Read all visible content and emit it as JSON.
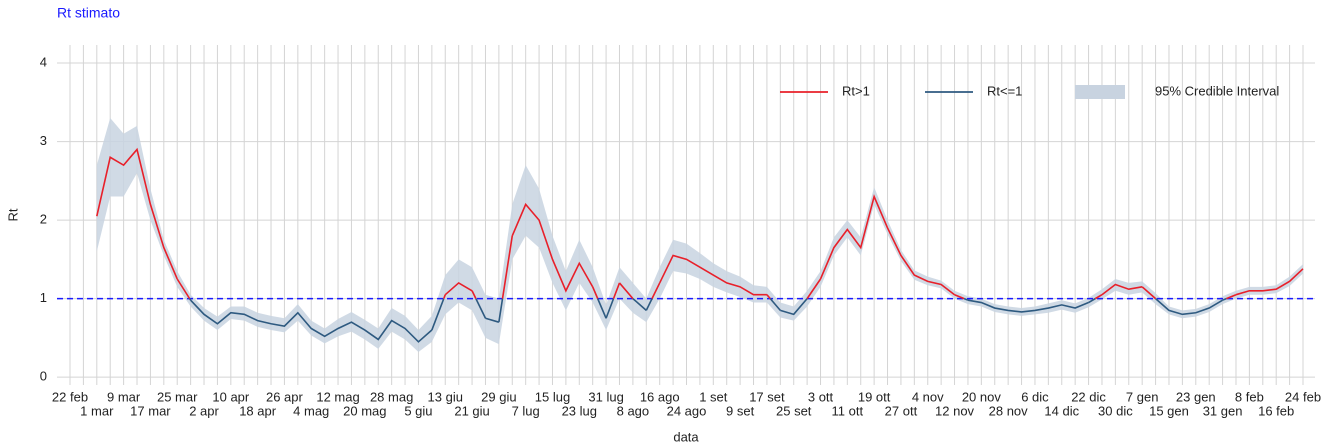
{
  "chart_data": {
    "type": "line",
    "title": "Rt stimato",
    "x_label": "data",
    "y_label": "Rt",
    "categories": [
      "22 feb",
      null,
      "1 mar",
      null,
      "9 mar",
      null,
      "17 mar",
      null,
      "25 mar",
      null,
      "2 apr",
      null,
      "10 apr",
      null,
      "18 apr",
      null,
      "26 apr",
      null,
      "4 mag",
      null,
      "12 mag",
      null,
      "20 mag",
      null,
      "28 mag",
      null,
      "5 giu",
      null,
      "13 giu",
      null,
      "21 giu",
      null,
      "29 giu",
      null,
      "7 lug",
      null,
      "15 lug",
      null,
      "23 lug",
      null,
      "31 lug",
      null,
      "8 ago",
      null,
      "16 ago",
      null,
      "24 ago",
      null,
      "1 set",
      null,
      "9 set",
      null,
      "17 set",
      null,
      "25 set",
      null,
      "3 ott",
      null,
      "11 ott",
      null,
      "19 ott",
      null,
      "27 ott",
      null,
      "4 nov",
      null,
      "12 nov",
      null,
      "20 nov",
      null,
      "28 nov",
      null,
      "6 dic",
      null,
      "14 dic",
      null,
      "22 dic",
      null,
      "30 dic",
      null,
      "7 gen",
      null,
      "15 gen",
      null,
      "23 gen",
      null,
      "31 gen",
      null,
      "8 feb",
      null,
      "16 feb",
      null,
      "24 feb"
    ],
    "series": [
      {
        "name": "Rt>1",
        "color": "#e8202a",
        "values": [
          null,
          null,
          2.05,
          2.8,
          2.7,
          2.9,
          2.2,
          1.65,
          1.25,
          null,
          null,
          null,
          null,
          null,
          null,
          null,
          null,
          null,
          null,
          null,
          null,
          null,
          null,
          null,
          null,
          null,
          null,
          null,
          1.05,
          1.2,
          1.1,
          null,
          null,
          1.8,
          2.2,
          2.0,
          1.5,
          1.1,
          1.45,
          1.15,
          null,
          1.2,
          null,
          null,
          1.2,
          1.55,
          1.5,
          1.4,
          1.3,
          1.2,
          1.15,
          1.05,
          1.05,
          null,
          null,
          null,
          1.25,
          1.65,
          1.88,
          1.65,
          2.3,
          1.9,
          1.55,
          1.3,
          1.22,
          1.18,
          1.05,
          null,
          null,
          null,
          null,
          null,
          null,
          null,
          null,
          null,
          null,
          1.05,
          1.18,
          1.12,
          1.15,
          null,
          null,
          null,
          null,
          null,
          null,
          1.05,
          1.1,
          1.1,
          1.12,
          1.22,
          1.38
        ]
      },
      {
        "name": "Rt<=1",
        "color": "#2e5a80",
        "values": [
          null,
          null,
          null,
          null,
          null,
          null,
          null,
          null,
          null,
          0.98,
          0.8,
          0.68,
          0.82,
          0.8,
          0.72,
          0.68,
          0.65,
          0.82,
          0.62,
          0.52,
          0.62,
          0.7,
          0.6,
          0.48,
          0.72,
          0.62,
          0.45,
          0.6,
          null,
          null,
          null,
          0.75,
          0.7,
          null,
          null,
          null,
          null,
          null,
          null,
          null,
          0.75,
          null,
          1.0,
          0.85,
          null,
          null,
          null,
          null,
          null,
          null,
          null,
          null,
          null,
          0.85,
          0.8,
          1.0,
          null,
          null,
          null,
          null,
          null,
          null,
          null,
          null,
          null,
          null,
          null,
          0.98,
          0.95,
          0.88,
          0.85,
          0.83,
          0.85,
          0.88,
          0.92,
          0.88,
          0.95,
          null,
          null,
          null,
          null,
          1.0,
          0.85,
          0.8,
          0.82,
          0.88,
          0.98,
          null,
          null,
          null,
          null,
          null,
          null
        ]
      }
    ],
    "interval": {
      "name": "95% Credible Interval",
      "color": "#c8d3e0",
      "lower": [
        null,
        null,
        1.6,
        2.3,
        2.3,
        2.6,
        2.0,
        1.55,
        1.15,
        0.9,
        0.72,
        0.6,
        0.74,
        0.72,
        0.64,
        0.6,
        0.57,
        0.72,
        0.53,
        0.43,
        0.52,
        0.58,
        0.48,
        0.36,
        0.58,
        0.48,
        0.32,
        0.45,
        0.8,
        0.95,
        0.85,
        0.5,
        0.42,
        1.5,
        1.8,
        1.65,
        1.2,
        0.85,
        1.2,
        0.95,
        0.6,
        1.0,
        0.82,
        0.7,
        1.0,
        1.35,
        1.32,
        1.25,
        1.15,
        1.08,
        1.02,
        0.95,
        0.95,
        0.76,
        0.72,
        0.9,
        1.15,
        1.55,
        1.78,
        1.55,
        2.2,
        1.82,
        1.48,
        1.24,
        1.17,
        1.13,
        1.0,
        0.93,
        0.9,
        0.83,
        0.8,
        0.78,
        0.8,
        0.82,
        0.86,
        0.82,
        0.89,
        0.99,
        1.1,
        1.05,
        1.08,
        0.93,
        0.8,
        0.75,
        0.77,
        0.83,
        0.93,
        1.0,
        1.05,
        1.05,
        1.07,
        1.16,
        1.32
      ],
      "upper": [
        null,
        null,
        2.7,
        3.3,
        3.1,
        3.2,
        2.4,
        1.75,
        1.35,
        1.05,
        0.88,
        0.77,
        0.9,
        0.9,
        0.82,
        0.78,
        0.75,
        0.93,
        0.72,
        0.62,
        0.74,
        0.83,
        0.73,
        0.62,
        0.88,
        0.78,
        0.6,
        0.78,
        1.3,
        1.5,
        1.4,
        1.05,
        1.0,
        2.2,
        2.7,
        2.4,
        1.8,
        1.35,
        1.75,
        1.4,
        0.92,
        1.4,
        1.2,
        1.0,
        1.4,
        1.75,
        1.7,
        1.58,
        1.45,
        1.35,
        1.28,
        1.17,
        1.15,
        0.95,
        0.9,
        1.1,
        1.35,
        1.78,
        2.0,
        1.78,
        2.42,
        2.0,
        1.62,
        1.36,
        1.28,
        1.23,
        1.1,
        1.03,
        1.0,
        0.93,
        0.9,
        0.88,
        0.9,
        0.94,
        0.98,
        0.94,
        1.01,
        1.12,
        1.25,
        1.2,
        1.22,
        1.07,
        0.9,
        0.85,
        0.87,
        0.93,
        1.03,
        1.1,
        1.15,
        1.15,
        1.17,
        1.28,
        1.44
      ]
    },
    "hline": {
      "value": 1,
      "color": "#1a1aff"
    },
    "ylim": [
      -0.1,
      4.23
    ],
    "yticks": [
      0,
      1,
      2,
      3,
      4
    ],
    "grid": true,
    "legend": "upper right"
  }
}
